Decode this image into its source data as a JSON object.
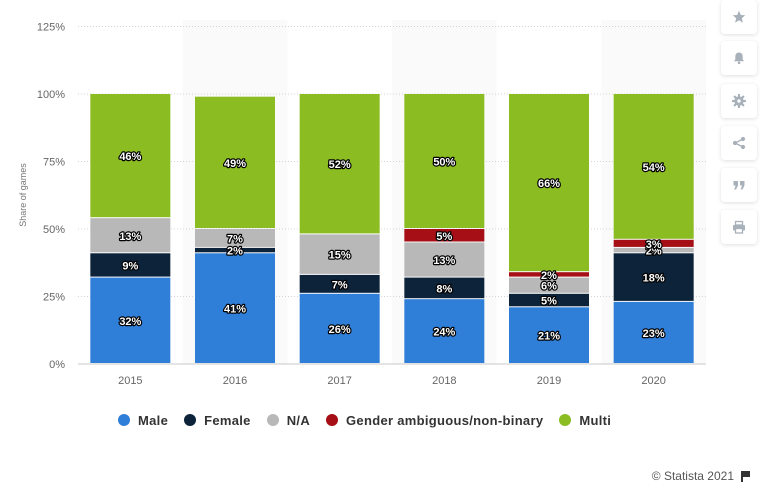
{
  "chart_data": {
    "type": "bar",
    "stacked": true,
    "categories": [
      "2015",
      "2016",
      "2017",
      "2018",
      "2019",
      "2020"
    ],
    "series": [
      {
        "name": "Male",
        "color": "#2f7ed8",
        "values": [
          32,
          41,
          26,
          24,
          21,
          23
        ],
        "labels": [
          "32%",
          "41%",
          "26%",
          "24%",
          "21%",
          "23%"
        ]
      },
      {
        "name": "Female",
        "color": "#0d233a",
        "values": [
          9,
          2,
          7,
          8,
          5,
          18
        ],
        "labels": [
          "9%",
          "2%",
          "7%",
          "8%",
          "5%",
          "18%"
        ]
      },
      {
        "name": "N/A",
        "color": "#b8b8b8",
        "values": [
          13,
          7,
          15,
          13,
          6,
          2
        ],
        "labels": [
          "13%",
          "7%",
          "15%",
          "13%",
          "6%",
          "2%"
        ]
      },
      {
        "name": "Gender ambiguous/non-binary",
        "color": "#a50f15",
        "values": [
          0,
          0,
          0,
          5,
          2,
          3
        ],
        "labels": [
          "",
          "",
          "",
          "5%",
          "2%",
          "3%"
        ]
      },
      {
        "name": "Multi",
        "color": "#8bbc21",
        "values": [
          46,
          49,
          52,
          50,
          66,
          54
        ],
        "labels": [
          "46%",
          "49%",
          "52%",
          "50%",
          "66%",
          "54%"
        ]
      }
    ],
    "ylabel": "Share of games",
    "yticks": [
      "0%",
      "25%",
      "50%",
      "75%",
      "100%",
      "125%"
    ],
    "ylim": [
      0,
      125
    ],
    "grid": true,
    "legend_placement": "bottom"
  },
  "footer": {
    "credit": "© Statista 2021"
  },
  "toolbar": [
    "star-icon",
    "bell-icon",
    "gear-icon",
    "share-icon",
    "quote-icon",
    "print-icon"
  ]
}
